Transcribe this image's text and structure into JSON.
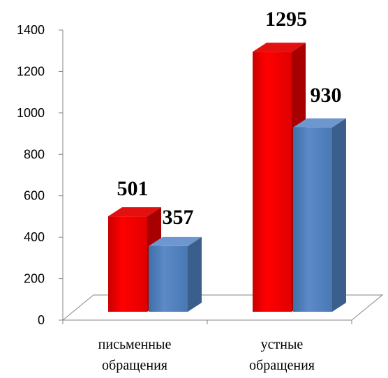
{
  "chart_data": {
    "type": "bar",
    "title": "",
    "xlabel": "",
    "ylabel": "",
    "ylim": [
      0,
      1400
    ],
    "yticks": [
      0,
      200,
      400,
      600,
      800,
      1000,
      1200,
      1400
    ],
    "categories": [
      [
        "письменные",
        "обращения"
      ],
      [
        "устные",
        "обращения"
      ]
    ],
    "series": [
      {
        "values": [
          501,
          1295
        ],
        "color": "#ff0000"
      },
      {
        "values": [
          357,
          930
        ],
        "color": "#4f81bd"
      }
    ],
    "grid": false,
    "legend": "none",
    "style": "3d-columns"
  }
}
